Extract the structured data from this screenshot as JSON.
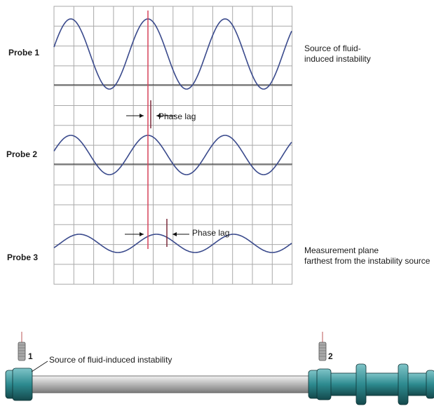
{
  "probes": [
    {
      "label": "Probe 1",
      "amplitude": 50,
      "phase_lag_deg": 0
    },
    {
      "label": "Probe 2",
      "amplitude": 28,
      "phase_lag_deg": 0
    },
    {
      "label": "Probe 3",
      "amplitude": 13,
      "phase_lag_deg": 40
    }
  ],
  "notes": {
    "source_line1": "Source of fluid-",
    "source_line2": "induced instability",
    "measurement_line1": "Measurement plane",
    "measurement_line2": "farthest from the instability source"
  },
  "phase_lag_labels": [
    "Phase lag",
    "Phase lag"
  ],
  "shaft": {
    "sensor_labels": [
      "1",
      "2"
    ],
    "source_caption": "Source of fluid-induced instability"
  },
  "colors": {
    "wave": "#3a4a8c",
    "grid": "#a9a9a9",
    "reference_line": "#d6425a",
    "rotor": "#2d8a8f",
    "shaft": "#c8c8c8"
  }
}
